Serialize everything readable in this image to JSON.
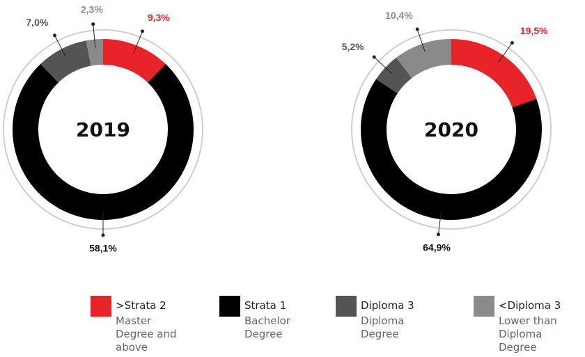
{
  "chart_data": [
    {
      "type": "pie",
      "title": "2019",
      "categories": [
        ">Strata 2",
        "Strata 1",
        "Diploma 3",
        "<Diploma 3"
      ],
      "values": [
        9.3,
        58.1,
        7.0,
        2.3
      ],
      "value_labels": [
        "9,3%",
        "58,1%",
        "7,0%",
        "2,3%"
      ],
      "colors": [
        "#e8232a",
        "#000000",
        "#545454",
        "#8a8a8a"
      ]
    },
    {
      "type": "pie",
      "title": "2020",
      "categories": [
        ">Strata 2",
        "Strata 1",
        "Diploma 3",
        "<Diploma 3"
      ],
      "values": [
        19.5,
        64.9,
        5.2,
        10.4
      ],
      "value_labels": [
        "19,5%",
        "64,9%",
        "5,2%",
        "10,4%"
      ],
      "colors": [
        "#e8232a",
        "#000000",
        "#545454",
        "#8a8a8a"
      ]
    }
  ],
  "legend": [
    {
      "name": ">Strata 2",
      "description": "Master Degree and above"
    },
    {
      "name": "Strata 1",
      "description": "Bachelor Degree"
    },
    {
      "name": "Diploma 3",
      "description": "Diploma Degree"
    },
    {
      "name": "<Diploma 3",
      "description": "Lower than Diploma Degree"
    }
  ]
}
